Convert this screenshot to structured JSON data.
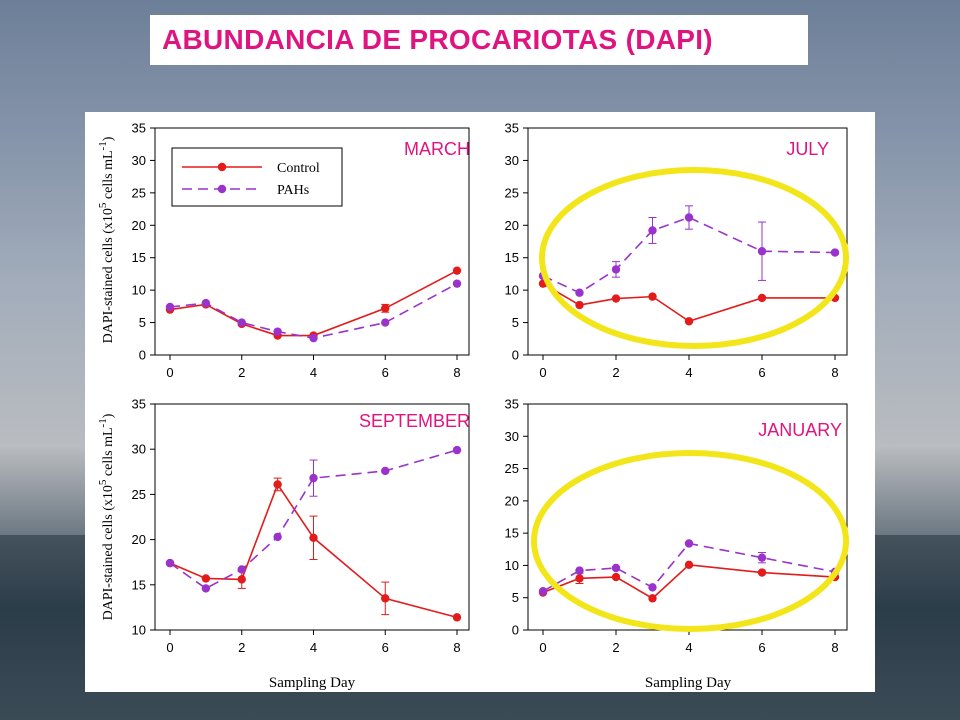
{
  "title": "ABUNDANCIA DE PROCARIOTAS (DAPI)",
  "colors": {
    "title": "#e0147f",
    "control": "#e31b1b",
    "pahs": "#9933cc",
    "label": "#e0147f",
    "ellipse": "#f2e61a"
  },
  "legend": {
    "control": "Control",
    "pahs": "PAHs"
  },
  "x_label": "Sampling Day",
  "y_label_parts": {
    "a": "DAPI-stained cells (x10",
    "b": "5",
    "c": " cells mL",
    "d": "-1",
    "e": ")"
  },
  "chart_data": [
    {
      "type": "line",
      "panel_label": "MARCH",
      "x": [
        0,
        1,
        2,
        3,
        4,
        6,
        8
      ],
      "xticks": [
        0,
        2,
        4,
        6,
        8
      ],
      "ylim": [
        0,
        35
      ],
      "yticks": [
        0,
        5,
        10,
        15,
        20,
        25,
        30,
        35
      ],
      "series": [
        {
          "name": "Control",
          "values": [
            7.0,
            7.8,
            4.8,
            3.0,
            3.0,
            7.2,
            13.0
          ],
          "err": [
            0,
            0,
            0,
            0,
            0,
            0.6,
            0
          ]
        },
        {
          "name": "PAHs",
          "values": [
            7.4,
            8.0,
            5.0,
            3.6,
            2.6,
            5.0,
            11.0
          ],
          "err": [
            0,
            0,
            0,
            0,
            0,
            0,
            0
          ]
        }
      ],
      "legend": "top-left",
      "highlighted": false
    },
    {
      "type": "line",
      "panel_label": "JULY",
      "x": [
        0,
        1,
        2,
        3,
        4,
        6,
        8
      ],
      "xticks": [
        0,
        2,
        4,
        6,
        8
      ],
      "ylim": [
        0,
        35
      ],
      "yticks": [
        0,
        5,
        10,
        15,
        20,
        25,
        30,
        35
      ],
      "series": [
        {
          "name": "Control",
          "values": [
            11.0,
            7.7,
            8.7,
            9.0,
            5.2,
            8.8,
            8.8
          ],
          "err": [
            0,
            0,
            0,
            0,
            0,
            0,
            0
          ]
        },
        {
          "name": "PAHs",
          "values": [
            12.2,
            9.6,
            13.2,
            19.2,
            21.2,
            16.0,
            15.8
          ],
          "err": [
            0,
            0,
            1.2,
            2.0,
            1.8,
            4.5,
            0
          ]
        }
      ],
      "highlighted": true
    },
    {
      "type": "line",
      "panel_label": "SEPTEMBER",
      "x": [
        0,
        1,
        2,
        3,
        4,
        6,
        8
      ],
      "xticks": [
        0,
        2,
        4,
        6,
        8
      ],
      "ylim": [
        10,
        35
      ],
      "yticks": [
        10,
        15,
        20,
        25,
        30,
        35
      ],
      "series": [
        {
          "name": "Control",
          "values": [
            17.4,
            15.7,
            15.6,
            26.1,
            20.2,
            13.5,
            11.4
          ],
          "err": [
            0,
            0,
            1.0,
            0.7,
            2.4,
            1.8,
            0
          ]
        },
        {
          "name": "PAHs",
          "values": [
            17.4,
            14.6,
            16.7,
            20.3,
            26.8,
            27.6,
            29.9
          ],
          "err": [
            0,
            0,
            0,
            0,
            2.0,
            0,
            0
          ]
        }
      ],
      "highlighted": false
    },
    {
      "type": "line",
      "panel_label": "JANUARY",
      "x": [
        0,
        1,
        2,
        3,
        4,
        6,
        8
      ],
      "xticks": [
        0,
        2,
        4,
        6,
        8
      ],
      "ylim": [
        0,
        35
      ],
      "yticks": [
        0,
        5,
        10,
        15,
        20,
        25,
        30,
        35
      ],
      "series": [
        {
          "name": "Control",
          "values": [
            5.8,
            8.0,
            8.2,
            4.9,
            10.1,
            8.9,
            8.2
          ],
          "err": [
            0,
            0.8,
            0,
            0,
            0,
            0,
            0
          ]
        },
        {
          "name": "PAHs",
          "values": [
            6.0,
            9.2,
            9.6,
            6.6,
            13.4,
            11.2,
            9.0
          ],
          "err": [
            0,
            0,
            0,
            0,
            0,
            0.8,
            0
          ]
        }
      ],
      "highlighted": true
    }
  ]
}
